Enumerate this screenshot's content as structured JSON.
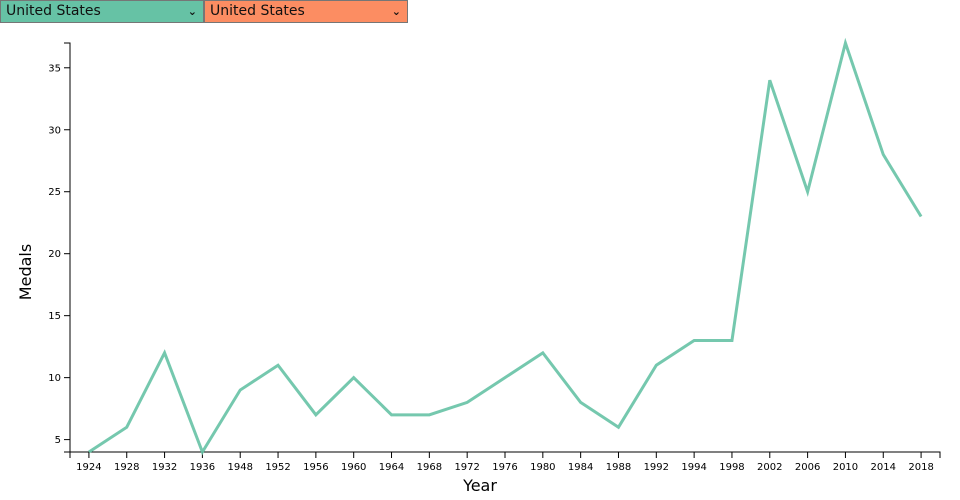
{
  "selectors": [
    {
      "value": "United States",
      "color": "#66c2a5"
    },
    {
      "value": "United States",
      "color": "#fc8d62"
    }
  ],
  "chart_data": {
    "type": "line",
    "xlabel": "Year",
    "ylabel": "Medals",
    "categories": [
      "1924",
      "1928",
      "1932",
      "1936",
      "1948",
      "1952",
      "1956",
      "1960",
      "1964",
      "1968",
      "1972",
      "1976",
      "1980",
      "1984",
      "1988",
      "1992",
      "1994",
      "1998",
      "2002",
      "2006",
      "2010",
      "2014",
      "2018"
    ],
    "series": [
      {
        "color": "#66c2a5",
        "values": [
          4,
          6,
          12,
          4,
          9,
          11,
          7,
          10,
          7,
          7,
          8,
          10,
          12,
          8,
          6,
          11,
          13,
          13,
          34,
          25,
          37,
          28,
          23
        ]
      }
    ],
    "yticks": [
      5,
      10,
      15,
      20,
      25,
      30,
      35
    ],
    "ylim": [
      4,
      37
    ],
    "grid": false
  }
}
